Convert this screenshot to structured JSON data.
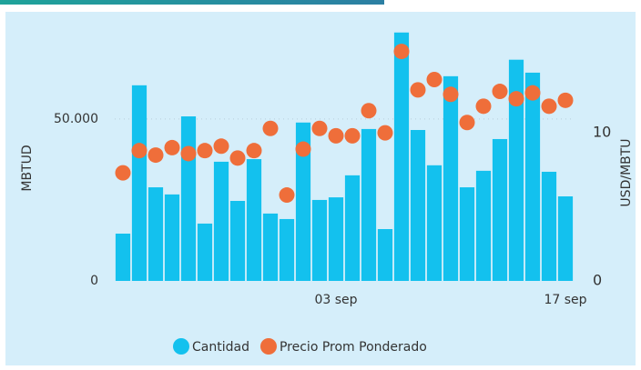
{
  "chart_data": {
    "type": "bar_scatter",
    "categories": [
      null,
      null,
      null,
      null,
      null,
      null,
      null,
      null,
      null,
      null,
      null,
      null,
      null,
      "03 sep",
      null,
      null,
      null,
      null,
      null,
      null,
      null,
      null,
      null,
      null,
      null,
      null,
      null,
      "17 sep"
    ],
    "y_label": "MBTUD",
    "y2_label": "USD/MBTU",
    "ylim": [
      0,
      80000
    ],
    "yticks": [
      0,
      {
        "value": 50000,
        "label": "50.000"
      }
    ],
    "y2lim": [
      0,
      17.5
    ],
    "y2ticks": [
      0,
      10
    ],
    "grid": true,
    "legend": "bottom",
    "series": [
      {
        "name": "Cantidad",
        "color": "#13c1ee",
        "kind": "bar",
        "values": [
          14600,
          60400,
          28900,
          26700,
          50800,
          17700,
          36800,
          24700,
          37600,
          20800,
          19100,
          48900,
          25000,
          25800,
          32600,
          46900,
          16000,
          76700,
          46600,
          35700,
          63200,
          28900,
          34000,
          43800,
          68300,
          64300,
          33700,
          26100
        ]
      },
      {
        "name": "Precio Prom Ponderado",
        "color": "#ef6e3a",
        "kind": "dot",
        "axis": "y2",
        "values": [
          7.3,
          8.8,
          8.5,
          9.0,
          8.6,
          8.8,
          9.1,
          8.3,
          8.8,
          10.3,
          5.8,
          8.9,
          10.3,
          9.8,
          9.8,
          11.5,
          10.0,
          15.5,
          12.9,
          13.6,
          12.6,
          10.7,
          11.8,
          12.8,
          12.3,
          12.7,
          11.8,
          12.2
        ]
      }
    ]
  }
}
